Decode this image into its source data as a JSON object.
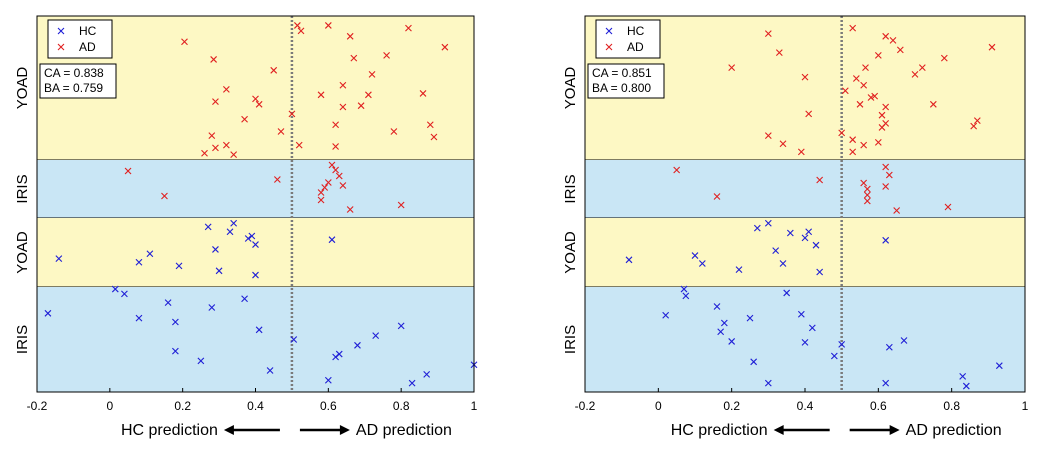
{
  "chart_data": [
    {
      "type": "scatter",
      "xlabel_left": "HC prediction",
      "xlabel_right": "AD prediction",
      "xlim": [
        -0.2,
        1.0
      ],
      "x_ticks": [
        "-0.2",
        "0",
        "0.2",
        "0.4",
        "0.6",
        "0.8",
        "1"
      ],
      "threshold": 0.5,
      "bands": [
        {
          "label": "YOAD",
          "color": "#fdf8c4",
          "group": "AD"
        },
        {
          "label": "IRIS",
          "color": "#c9e6f5",
          "group": "AD"
        },
        {
          "label": "YOAD",
          "color": "#fdf8c4",
          "group": "HC"
        },
        {
          "label": "IRIS",
          "color": "#c9e6f5",
          "group": "HC"
        }
      ],
      "legend": {
        "position": "top-left",
        "entries": [
          {
            "name": "HC",
            "color": "#1f1fd6"
          },
          {
            "name": "AD",
            "color": "#e02020"
          }
        ]
      },
      "metrics": {
        "ca": "CA = 0.838",
        "ba": "BA = 0.759"
      },
      "series": [
        {
          "name": "AD",
          "band": 0,
          "points": [
            [
              0.205,
              0.16
            ],
            [
              0.285,
              0.29
            ],
            [
              0.32,
              0.51
            ],
            [
              0.37,
              0.73
            ],
            [
              0.4,
              0.58
            ],
            [
              0.45,
              0.37
            ],
            [
              0.47,
              0.82
            ],
            [
              0.28,
              0.85
            ],
            [
              0.29,
              0.6
            ],
            [
              0.5,
              0.69
            ],
            [
              0.515,
              0.04
            ],
            [
              0.525,
              0.08
            ],
            [
              0.58,
              0.55
            ],
            [
              0.62,
              0.77
            ],
            [
              0.64,
              0.48
            ],
            [
              0.66,
              0.12
            ],
            [
              0.67,
              0.28
            ],
            [
              0.69,
              0.63
            ],
            [
              0.71,
              0.55
            ],
            [
              0.72,
              0.4
            ],
            [
              0.76,
              0.26
            ],
            [
              0.78,
              0.82
            ],
            [
              0.82,
              0.06
            ],
            [
              0.86,
              0.54
            ],
            [
              0.88,
              0.77
            ],
            [
              0.92,
              0.2
            ],
            [
              0.89,
              0.86
            ],
            [
              0.29,
              0.94
            ],
            [
              0.26,
              0.98
            ],
            [
              0.32,
              0.92
            ],
            [
              0.34,
              0.99
            ],
            [
              0.52,
              0.92
            ],
            [
              0.41,
              0.62
            ],
            [
              0.64,
              0.64
            ],
            [
              0.6,
              0.04
            ],
            [
              0.62,
              0.93
            ]
          ]
        },
        {
          "name": "AD",
          "band": 1,
          "points": [
            [
              0.05,
              0.14
            ],
            [
              0.15,
              0.64
            ],
            [
              0.46,
              0.31
            ],
            [
              0.6,
              0.37
            ],
            [
              0.61,
              0.02
            ],
            [
              0.62,
              0.12
            ],
            [
              0.63,
              0.24
            ],
            [
              0.59,
              0.47
            ],
            [
              0.58,
              0.57
            ],
            [
              0.58,
              0.72
            ],
            [
              0.64,
              0.43
            ],
            [
              0.66,
              0.91
            ],
            [
              0.8,
              0.82
            ]
          ]
        },
        {
          "name": "HC",
          "band": 2,
          "points": [
            [
              -0.14,
              0.6
            ],
            [
              0.08,
              0.66
            ],
            [
              0.11,
              0.52
            ],
            [
              0.19,
              0.72
            ],
            [
              0.27,
              0.08
            ],
            [
              0.29,
              0.45
            ],
            [
              0.3,
              0.8
            ],
            [
              0.33,
              0.16
            ],
            [
              0.34,
              0.02
            ],
            [
              0.38,
              0.27
            ],
            [
              0.39,
              0.23
            ],
            [
              0.4,
              0.37
            ],
            [
              0.4,
              0.87
            ],
            [
              0.61,
              0.29
            ]
          ]
        },
        {
          "name": "HC",
          "band": 3,
          "points": [
            [
              -0.17,
              0.23
            ],
            [
              0.015,
              -0.02
            ],
            [
              0.04,
              0.03
            ],
            [
              0.08,
              0.28
            ],
            [
              0.16,
              0.12
            ],
            [
              0.18,
              0.32
            ],
            [
              0.18,
              0.62
            ],
            [
              0.25,
              0.72
            ],
            [
              0.28,
              0.17
            ],
            [
              0.37,
              0.08
            ],
            [
              0.41,
              0.4
            ],
            [
              0.44,
              0.82
            ],
            [
              0.505,
              0.5
            ],
            [
              0.6,
              0.92
            ],
            [
              0.62,
              0.68
            ],
            [
              0.63,
              0.65
            ],
            [
              0.68,
              0.56
            ],
            [
              0.73,
              0.46
            ],
            [
              0.8,
              0.36
            ],
            [
              0.87,
              0.86
            ],
            [
              0.83,
              0.95
            ],
            [
              1.0,
              0.76
            ]
          ]
        }
      ]
    },
    {
      "type": "scatter",
      "xlabel_left": "HC prediction",
      "xlabel_right": "AD prediction",
      "xlim": [
        -0.2,
        1.0
      ],
      "x_ticks": [
        "-0.2",
        "0",
        "0.2",
        "0.4",
        "0.6",
        "0.8",
        "1"
      ],
      "threshold": 0.5,
      "bands": [
        {
          "label": "YOAD",
          "color": "#fdf8c4",
          "group": "AD"
        },
        {
          "label": "IRIS",
          "color": "#c9e6f5",
          "group": "AD"
        },
        {
          "label": "YOAD",
          "color": "#fdf8c4",
          "group": "HC"
        },
        {
          "label": "IRIS",
          "color": "#c9e6f5",
          "group": "HC"
        }
      ],
      "legend": {
        "position": "top-left",
        "entries": [
          {
            "name": "HC",
            "color": "#1f1fd6"
          },
          {
            "name": "AD",
            "color": "#e02020"
          }
        ]
      },
      "metrics": {
        "ca": "CA = 0.851",
        "ba": "BA = 0.800"
      },
      "series": [
        {
          "name": "AD",
          "band": 0,
          "points": [
            [
              0.2,
              0.35
            ],
            [
              0.3,
              0.1
            ],
            [
              0.33,
              0.24
            ],
            [
              0.4,
              0.42
            ],
            [
              0.41,
              0.69
            ],
            [
              0.53,
              0.06
            ],
            [
              0.54,
              0.43
            ],
            [
              0.55,
              0.62
            ],
            [
              0.56,
              0.48
            ],
            [
              0.59,
              0.56
            ],
            [
              0.61,
              0.7
            ],
            [
              0.62,
              0.64
            ],
            [
              0.64,
              0.15
            ],
            [
              0.66,
              0.22
            ],
            [
              0.7,
              0.4
            ],
            [
              0.72,
              0.35
            ],
            [
              0.75,
              0.62
            ],
            [
              0.78,
              0.28
            ],
            [
              0.86,
              0.78
            ],
            [
              0.87,
              0.74
            ],
            [
              0.91,
              0.2
            ],
            [
              0.39,
              0.97
            ],
            [
              0.6,
              0.9
            ],
            [
              0.3,
              0.85
            ],
            [
              0.34,
              0.91
            ],
            [
              0.51,
              0.52
            ],
            [
              0.565,
              0.35
            ],
            [
              0.6,
              0.26
            ],
            [
              0.62,
              0.12
            ],
            [
              0.61,
              0.79
            ],
            [
              0.53,
              0.97
            ],
            [
              0.5,
              0.83
            ],
            [
              0.53,
              0.88
            ],
            [
              0.56,
              0.92
            ],
            [
              0.62,
              0.76
            ],
            [
              0.58,
              0.57
            ]
          ]
        },
        {
          "name": "AD",
          "band": 1,
          "points": [
            [
              0.05,
              0.12
            ],
            [
              0.16,
              0.65
            ],
            [
              0.44,
              0.32
            ],
            [
              0.56,
              0.38
            ],
            [
              0.57,
              0.5
            ],
            [
              0.57,
              0.62
            ],
            [
              0.57,
              0.74
            ],
            [
              0.62,
              0.06
            ],
            [
              0.63,
              0.22
            ],
            [
              0.62,
              0.45
            ],
            [
              0.65,
              0.93
            ],
            [
              0.79,
              0.86
            ]
          ]
        },
        {
          "name": "HC",
          "band": 2,
          "points": [
            [
              -0.08,
              0.62
            ],
            [
              0.1,
              0.55
            ],
            [
              0.12,
              0.68
            ],
            [
              0.22,
              0.78
            ],
            [
              0.27,
              0.1
            ],
            [
              0.3,
              0.02
            ],
            [
              0.32,
              0.47
            ],
            [
              0.34,
              0.68
            ],
            [
              0.36,
              0.18
            ],
            [
              0.4,
              0.26
            ],
            [
              0.41,
              0.16
            ],
            [
              0.43,
              0.38
            ],
            [
              0.44,
              0.82
            ],
            [
              0.62,
              0.3
            ]
          ]
        },
        {
          "name": "HC",
          "band": 3,
          "points": [
            [
              0.07,
              -0.02
            ],
            [
              0.075,
              0.05
            ],
            [
              0.16,
              0.16
            ],
            [
              0.18,
              0.33
            ],
            [
              0.2,
              0.52
            ],
            [
              0.25,
              0.28
            ],
            [
              0.26,
              0.73
            ],
            [
              0.3,
              0.95
            ],
            [
              0.35,
              0.02
            ],
            [
              0.39,
              0.24
            ],
            [
              0.4,
              0.53
            ],
            [
              0.42,
              0.38
            ],
            [
              0.48,
              0.67
            ],
            [
              0.5,
              0.55
            ],
            [
              0.63,
              0.58
            ],
            [
              0.67,
              0.51
            ],
            [
              0.83,
              0.88
            ],
            [
              0.84,
              0.98
            ],
            [
              0.93,
              0.77
            ],
            [
              0.02,
              0.25
            ],
            [
              0.17,
              0.42
            ],
            [
              0.62,
              0.95
            ]
          ]
        }
      ]
    }
  ]
}
